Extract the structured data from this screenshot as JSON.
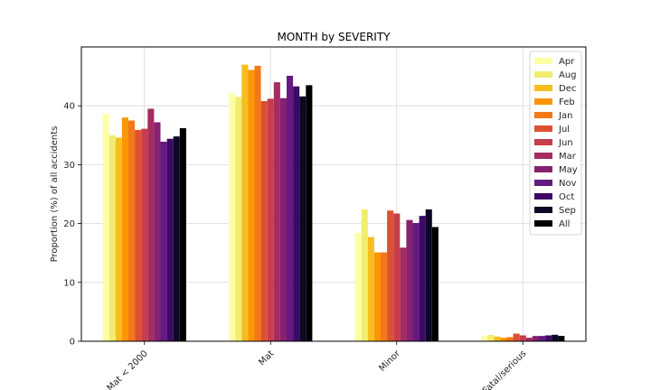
{
  "chart_data": {
    "type": "bar",
    "title": "MONTH by SEVERITY",
    "xlabel": "",
    "ylabel": "Proportion (%) of all accidents",
    "ylim": [
      0,
      50
    ],
    "yticks": [
      0,
      10,
      20,
      30,
      40
    ],
    "grid": true,
    "legend": "top-right",
    "categories": [
      "Mat < 2000",
      "Mat",
      "Minor",
      "Fatal/serious"
    ],
    "series": [
      {
        "name": "Apr",
        "color": "#fcffa4",
        "values": [
          38.6,
          42.1,
          18.4,
          0.9
        ]
      },
      {
        "name": "Aug",
        "color": "#f1ed71",
        "values": [
          35.0,
          41.5,
          22.4,
          1.1
        ]
      },
      {
        "name": "Dec",
        "color": "#f8bd1e",
        "values": [
          34.6,
          47.0,
          17.7,
          0.8
        ]
      },
      {
        "name": "Feb",
        "color": "#fb9606",
        "values": [
          38.0,
          46.1,
          15.1,
          0.6
        ]
      },
      {
        "name": "Jan",
        "color": "#f37819",
        "values": [
          37.5,
          46.8,
          15.1,
          0.7
        ]
      },
      {
        "name": "Jul",
        "color": "#dd5132",
        "values": [
          35.9,
          40.8,
          22.2,
          1.3
        ]
      },
      {
        "name": "Jun",
        "color": "#c63d4d",
        "values": [
          36.1,
          41.2,
          21.7,
          1.0
        ]
      },
      {
        "name": "Mar",
        "color": "#a52c60",
        "values": [
          39.5,
          44.0,
          15.9,
          0.6
        ]
      },
      {
        "name": "May",
        "color": "#862170",
        "values": [
          37.2,
          41.3,
          20.6,
          0.9
        ]
      },
      {
        "name": "Nov",
        "color": "#641a80",
        "values": [
          33.9,
          45.1,
          20.1,
          0.9
        ]
      },
      {
        "name": "Oct",
        "color": "#3c0965",
        "values": [
          34.4,
          43.3,
          21.3,
          1.0
        ]
      },
      {
        "name": "Sep",
        "color": "#0c0826",
        "values": [
          34.8,
          41.6,
          22.4,
          1.1
        ]
      },
      {
        "name": "All",
        "color": "#000004",
        "values": [
          36.2,
          43.5,
          19.4,
          0.9
        ]
      }
    ]
  }
}
